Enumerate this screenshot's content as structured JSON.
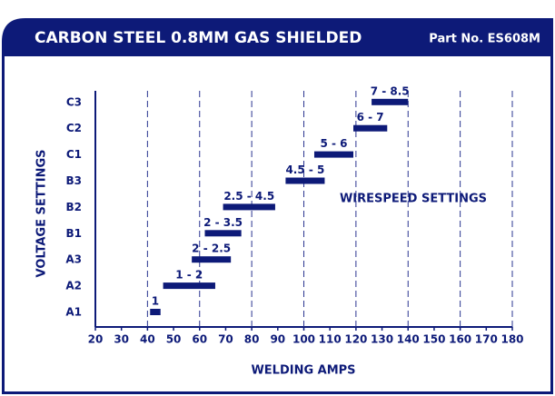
{
  "chart_data": {
    "type": "rangebar",
    "title": "CARBON STEEL 0.8MM GAS SHIELDED",
    "subtitle": "Part No. ES608M",
    "x_label": "WELDING AMPS",
    "y_label": "VOLTAGE SETTINGS",
    "annotation": "WIRESPEED SETTINGS",
    "categories": [
      "A1",
      "A2",
      "A3",
      "B1",
      "B2",
      "B3",
      "C1",
      "C2",
      "C3"
    ],
    "low": [
      41,
      46,
      57,
      62,
      69,
      93,
      104,
      119,
      126
    ],
    "high": [
      45,
      66,
      72,
      76,
      89,
      108,
      119,
      132,
      140
    ],
    "labels": [
      "1",
      "1 - 2",
      "2 - 2.5",
      "2 - 3.5",
      "2.5 - 4.5",
      "4.5 - 5",
      "5 - 6",
      "6 - 7",
      "7 - 8.5"
    ],
    "color": "#0d1a78",
    "xlim": [
      20,
      180
    ],
    "xticks": [
      20,
      30,
      40,
      50,
      60,
      70,
      80,
      90,
      100,
      110,
      120,
      130,
      140,
      150,
      160,
      170,
      180
    ],
    "gridlines": [
      40,
      60,
      80,
      100,
      120,
      140,
      160,
      180
    ],
    "grid": true
  }
}
